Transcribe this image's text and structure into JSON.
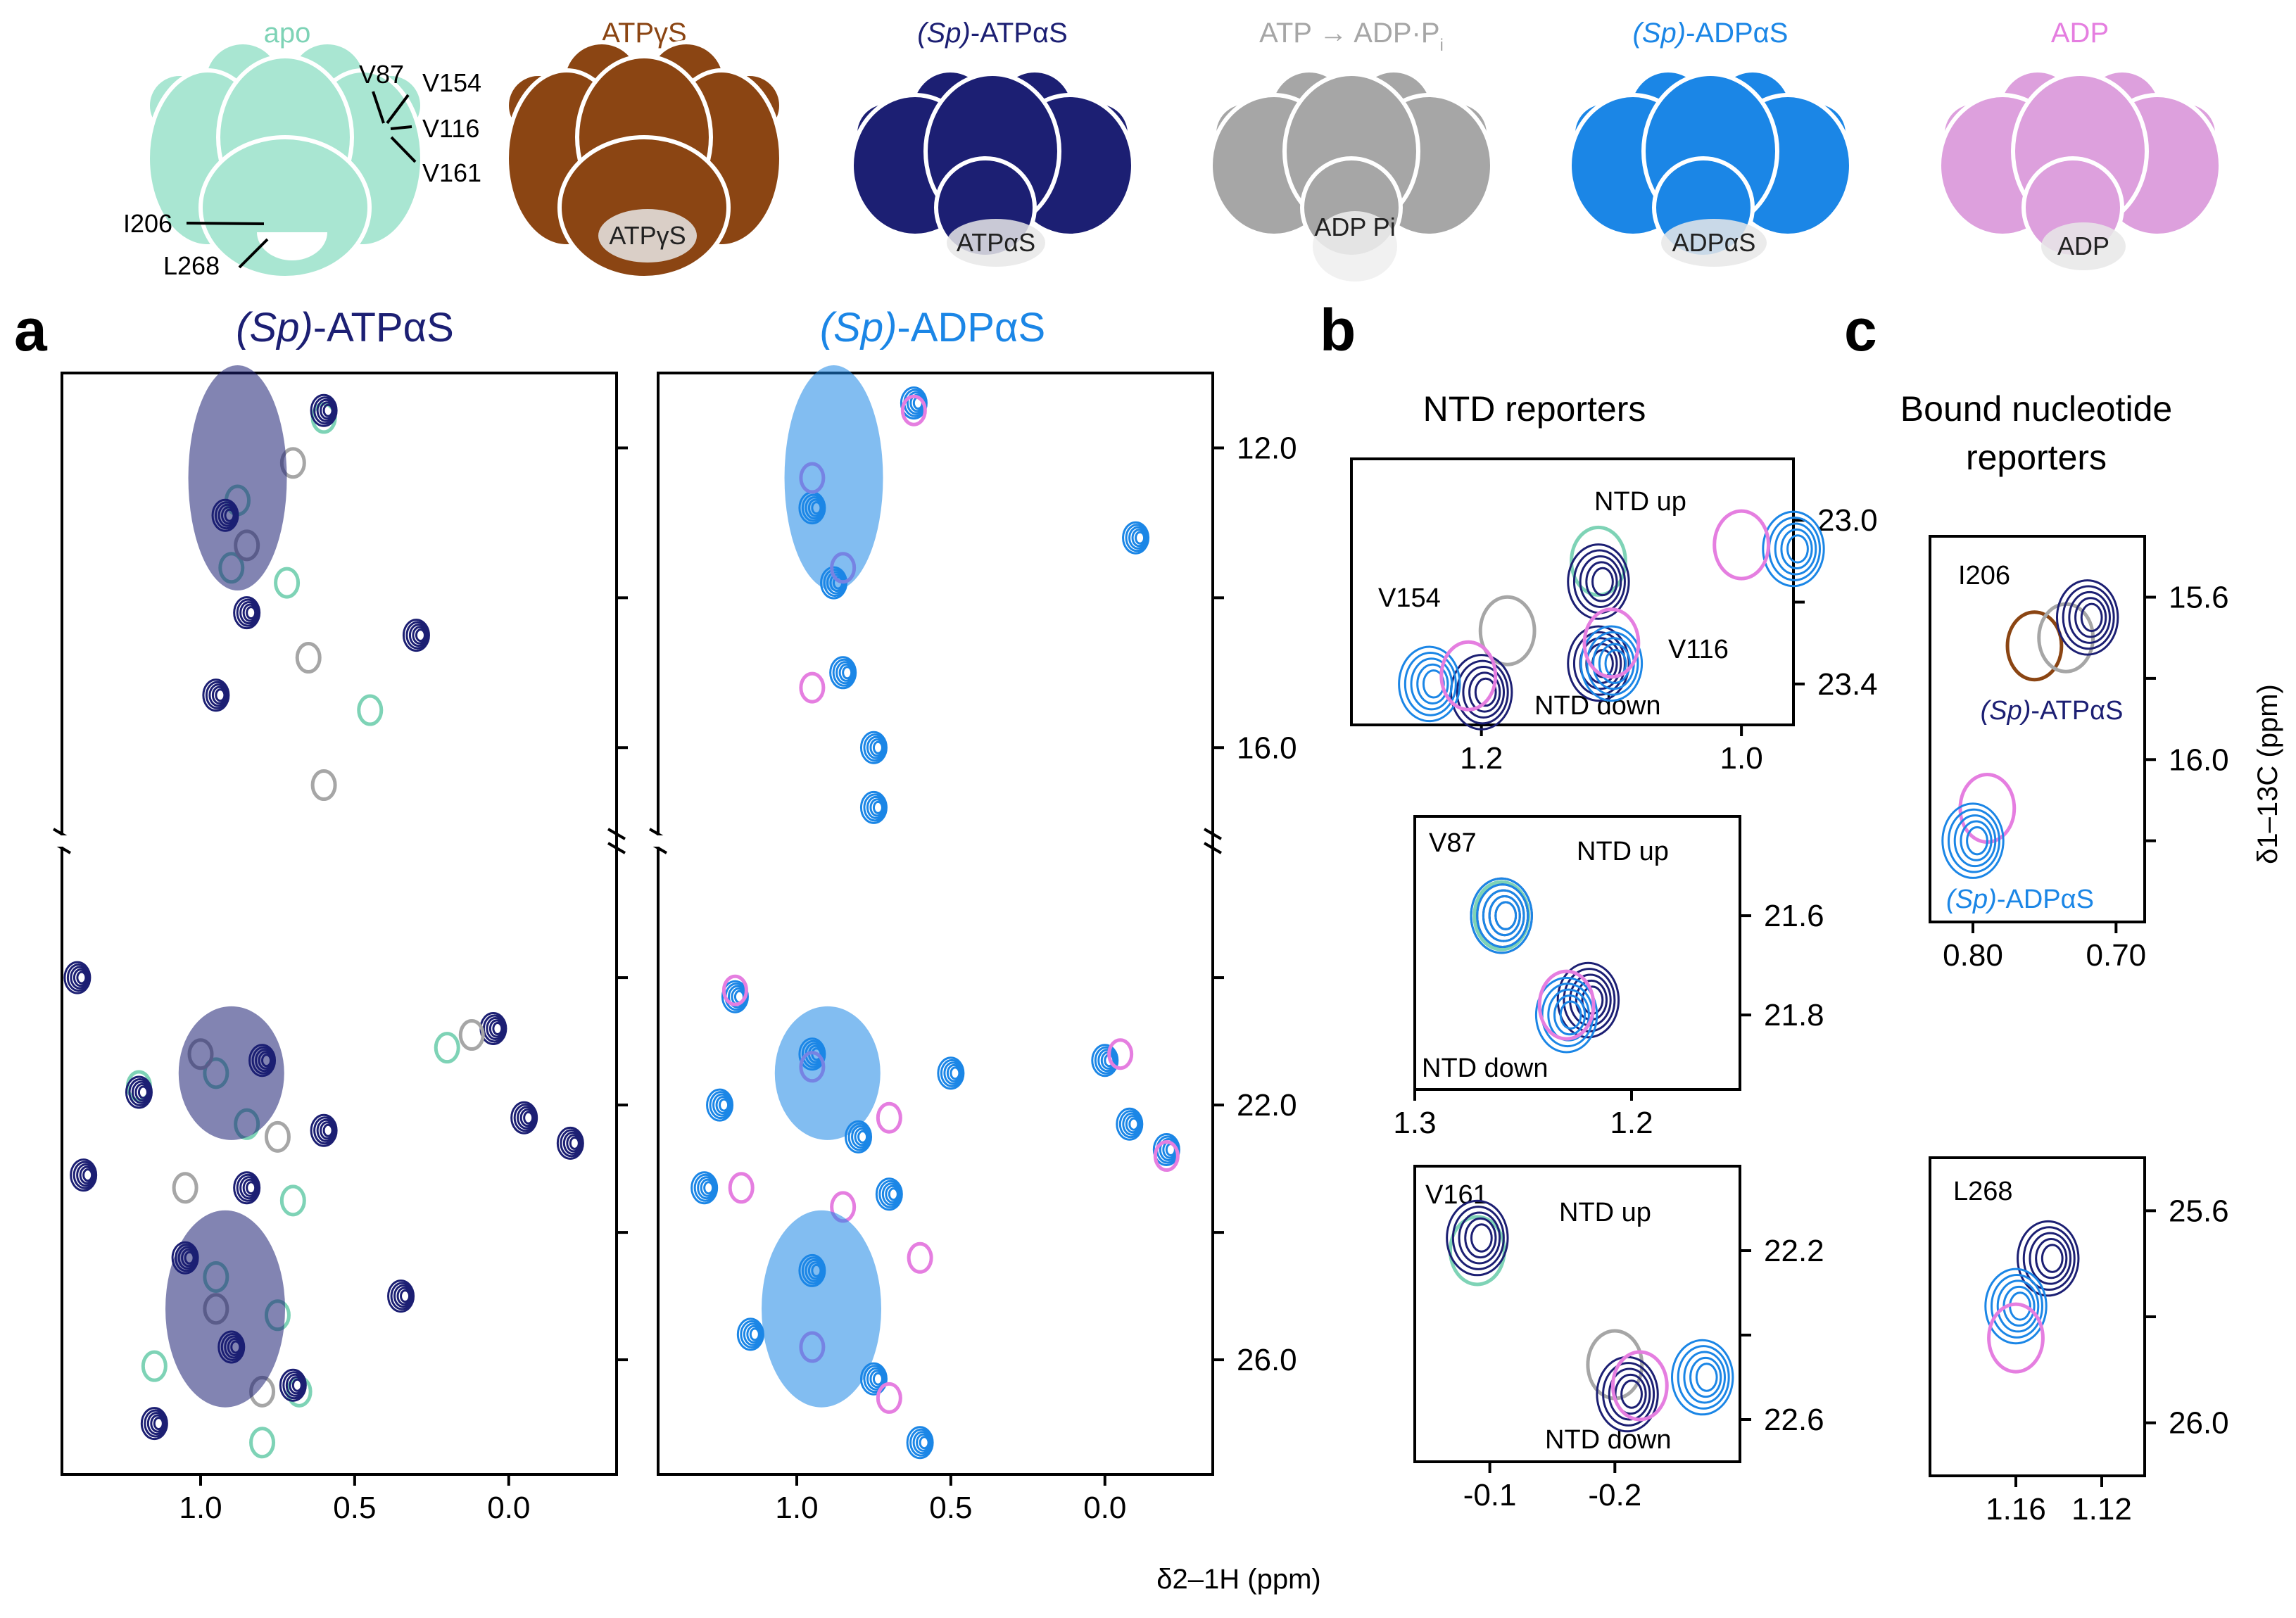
{
  "colors": {
    "apo": "#7ed3b6",
    "apo_fill": "#a9e6d2",
    "atpgs": "#8b4513",
    "atpas": "#1c1f73",
    "atp_adp": "#a6a6a6",
    "adpas": "#1b86e6",
    "adp": "#e57ee0",
    "adp_fill": "#dda0dd",
    "axis": "#000000"
  },
  "header": {
    "states": [
      {
        "label": "apo",
        "label_suffix": "",
        "color_key": "apo",
        "nucleotide": ""
      },
      {
        "label": "ATPγS",
        "label_suffix": "",
        "color_key": "atpgs",
        "nucleotide": "ATPγS"
      },
      {
        "label": "(Sp)",
        "label_suffix": "-ATPαS",
        "color_key": "atpas",
        "nucleotide": "ATPαS"
      },
      {
        "label": "ATP → ADP·P",
        "label_suffix": "i",
        "color_key": "atp_adp",
        "nucleotide": "ADP Pi"
      },
      {
        "label": "(Sp)",
        "label_suffix": "-ADPαS",
        "color_key": "adpas",
        "nucleotide": "ADPαS"
      },
      {
        "label": "ADP",
        "label_suffix": "",
        "color_key": "adp",
        "nucleotide": "ADP"
      }
    ],
    "residue_labels": [
      "V87",
      "V154",
      "V116",
      "V161",
      "I206",
      "L268"
    ]
  },
  "panel_letters": {
    "a": "a",
    "b": "b",
    "c": "c"
  },
  "chart_data": [
    {
      "id": "a-left",
      "type": "scatter",
      "title_italic": "(Sp)",
      "title": "-ATPαS",
      "xlim": [
        1.45,
        -0.35
      ],
      "xticks": [
        1.0,
        0.5,
        0.0
      ],
      "xtick_labels": [
        "1.0",
        "0.5",
        "0.0"
      ],
      "ylim_upper": [
        11.0,
        17.2
      ],
      "ylim_lower": [
        17.8,
        27.8
      ],
      "yticks": [
        12.0,
        14.0,
        16.0,
        20.0,
        22.0,
        24.0,
        26.0
      ],
      "series": [
        {
          "name": "apo",
          "color_key": "apo",
          "points": [
            [
              0.6,
              11.6
            ],
            [
              0.88,
              12.7
            ],
            [
              0.9,
              13.6
            ],
            [
              0.72,
              13.8
            ],
            [
              0.45,
              15.5
            ],
            [
              0.2,
              21.1
            ],
            [
              0.95,
              21.5
            ],
            [
              1.2,
              21.7
            ],
            [
              0.85,
              22.3
            ],
            [
              0.7,
              23.5
            ],
            [
              0.95,
              24.7
            ],
            [
              0.75,
              25.3
            ],
            [
              1.15,
              26.1
            ],
            [
              0.68,
              26.5
            ],
            [
              0.8,
              27.3
            ]
          ]
        },
        {
          "name": "(Sp)-ATPαS",
          "color_key": "atpas",
          "points": [
            [
              0.6,
              11.5
            ],
            [
              0.92,
              12.9
            ],
            [
              0.85,
              14.2
            ],
            [
              0.95,
              15.3
            ],
            [
              0.3,
              14.5
            ],
            [
              0.05,
              20.8
            ],
            [
              1.4,
              20.0
            ],
            [
              0.8,
              21.3
            ],
            [
              1.2,
              21.8
            ],
            [
              -0.05,
              22.2
            ],
            [
              -0.2,
              22.6
            ],
            [
              0.6,
              22.4
            ],
            [
              0.85,
              23.3
            ],
            [
              1.05,
              24.4
            ],
            [
              0.35,
              25.0
            ],
            [
              0.9,
              25.8
            ],
            [
              0.7,
              26.4
            ],
            [
              1.15,
              27.0
            ],
            [
              1.38,
              23.1
            ]
          ]
        },
        {
          "name": "ATP → ADP·Pi",
          "color_key": "atp_adp",
          "points": [
            [
              0.7,
              12.2
            ],
            [
              0.85,
              13.3
            ],
            [
              0.65,
              14.8
            ],
            [
              0.12,
              20.9
            ],
            [
              1.0,
              21.2
            ],
            [
              0.75,
              22.5
            ],
            [
              1.05,
              23.3
            ],
            [
              0.95,
              25.2
            ],
            [
              0.8,
              26.5
            ],
            [
              0.6,
              16.5
            ]
          ]
        }
      ],
      "ticks_right": false
    },
    {
      "id": "a-right",
      "type": "scatter",
      "title_italic": "(Sp)",
      "title": "-ADPαS",
      "xlim": [
        1.45,
        -0.35
      ],
      "xticks": [
        1.0,
        0.5,
        0.0
      ],
      "xtick_labels": [
        "1.0",
        "0.5",
        "0.0"
      ],
      "ylim_upper": [
        11.0,
        17.2
      ],
      "ylim_lower": [
        17.8,
        27.8
      ],
      "yticks": [
        12.0,
        14.0,
        16.0,
        20.0,
        22.0,
        24.0,
        26.0
      ],
      "ytick_labels": [
        "12.0",
        "",
        "16.0",
        "",
        "22.0",
        "",
        "26.0"
      ],
      "series": [
        {
          "name": "(Sp)-ADPαS",
          "color_key": "adpas",
          "points": [
            [
              0.62,
              11.4
            ],
            [
              0.95,
              12.8
            ],
            [
              0.88,
              13.8
            ],
            [
              0.85,
              15.0
            ],
            [
              -0.1,
              13.2
            ],
            [
              0.75,
              16.0
            ],
            [
              0.75,
              16.8
            ],
            [
              1.2,
              20.3
            ],
            [
              0.95,
              21.2
            ],
            [
              0.5,
              21.5
            ],
            [
              0.0,
              21.3
            ],
            [
              1.25,
              22.0
            ],
            [
              0.8,
              22.5
            ],
            [
              0.7,
              23.4
            ],
            [
              0.95,
              24.6
            ],
            [
              1.15,
              25.6
            ],
            [
              0.75,
              26.3
            ],
            [
              0.6,
              27.3
            ],
            [
              -0.08,
              22.3
            ],
            [
              -0.2,
              22.7
            ],
            [
              1.3,
              23.3
            ]
          ]
        },
        {
          "name": "ADP",
          "color_key": "adp",
          "points": [
            [
              0.62,
              11.5
            ],
            [
              0.95,
              12.4
            ],
            [
              0.85,
              13.6
            ],
            [
              0.95,
              15.2
            ],
            [
              1.2,
              20.2
            ],
            [
              0.95,
              21.4
            ],
            [
              0.7,
              22.2
            ],
            [
              1.18,
              23.3
            ],
            [
              0.85,
              23.6
            ],
            [
              0.6,
              24.4
            ],
            [
              0.95,
              25.8
            ],
            [
              0.7,
              26.6
            ],
            [
              -0.2,
              22.8
            ],
            [
              -0.05,
              21.2
            ]
          ]
        }
      ],
      "ticks_right": true
    },
    {
      "id": "b-ntd-1",
      "type": "scatter",
      "title": "NTD reporters",
      "xlim": [
        1.3,
        0.96
      ],
      "ylim": [
        23.5,
        22.85
      ],
      "xticks": [
        1.2,
        1.0
      ],
      "xtick_labels": [
        "1.2",
        "1.0"
      ],
      "yticks": [
        23.0,
        23.2,
        23.4
      ],
      "ytick_labels": [
        "23.0",
        "",
        "23.4"
      ],
      "annotations": [
        "V154",
        "NTD up",
        "V116",
        "NTD down"
      ],
      "series": [
        {
          "name": "apo",
          "color_key": "apo",
          "points": [
            [
              1.11,
              23.1
            ]
          ]
        },
        {
          "name": "ATP → ADP·Pi",
          "color_key": "atp_adp",
          "points": [
            [
              1.18,
              23.27
            ]
          ]
        },
        {
          "name": "(Sp)-ATPαS",
          "color_key": "atpas",
          "points": [
            [
              1.2,
              23.42
            ],
            [
              1.11,
              23.15
            ],
            [
              1.11,
              23.35
            ]
          ]
        },
        {
          "name": "(Sp)-ADPαS",
          "color_key": "adpas",
          "points": [
            [
              1.24,
              23.4
            ],
            [
              0.96,
              23.07
            ],
            [
              1.1,
              23.35
            ]
          ]
        },
        {
          "name": "ADP",
          "color_key": "adp",
          "points": [
            [
              1.21,
              23.38
            ],
            [
              1.0,
              23.06
            ],
            [
              1.1,
              23.3
            ]
          ]
        }
      ]
    },
    {
      "id": "b-v87",
      "type": "scatter",
      "xlim": [
        1.3,
        1.15
      ],
      "ylim": [
        21.95,
        21.4
      ],
      "xticks": [
        1.3,
        1.2
      ],
      "xtick_labels": [
        "1.3",
        "1.2"
      ],
      "yticks": [
        21.6,
        21.8
      ],
      "ytick_labels": [
        "21.6",
        "21.8"
      ],
      "annotations": [
        "V87",
        "NTD up",
        "NTD down"
      ],
      "series": [
        {
          "name": "apo",
          "color_key": "apo",
          "points": [
            [
              1.26,
              21.6
            ]
          ]
        },
        {
          "name": "(Sp)-ATPαS",
          "color_key": "atpas",
          "points": [
            [
              1.26,
              21.6
            ],
            [
              1.22,
              21.77
            ]
          ]
        },
        {
          "name": "(Sp)-ADPαS",
          "color_key": "adpas",
          "points": [
            [
              1.26,
              21.6
            ],
            [
              1.23,
              21.8
            ]
          ]
        },
        {
          "name": "ADP",
          "color_key": "adp",
          "points": [
            [
              1.23,
              21.78
            ]
          ]
        }
      ]
    },
    {
      "id": "b-v161",
      "type": "scatter",
      "xlim": [
        -0.04,
        -0.3
      ],
      "ylim": [
        22.7,
        22.0
      ],
      "xticks": [
        -0.1,
        -0.2
      ],
      "xtick_labels": [
        "-0.1",
        "-0.2"
      ],
      "yticks": [
        22.2,
        22.4,
        22.6
      ],
      "ytick_labels": [
        "22.2",
        "",
        "22.6"
      ],
      "annotations": [
        "V161",
        "NTD up",
        "NTD down"
      ],
      "series": [
        {
          "name": "apo",
          "color_key": "apo",
          "points": [
            [
              -0.09,
              22.2
            ]
          ]
        },
        {
          "name": "ATP → ADP·Pi",
          "color_key": "atp_adp",
          "points": [
            [
              -0.2,
              22.47
            ]
          ]
        },
        {
          "name": "(Sp)-ATPαS",
          "color_key": "atpas",
          "points": [
            [
              -0.09,
              22.17
            ],
            [
              -0.21,
              22.54
            ]
          ]
        },
        {
          "name": "(Sp)-ADPαS",
          "color_key": "adpas",
          "points": [
            [
              -0.27,
              22.5
            ]
          ]
        },
        {
          "name": "ADP",
          "color_key": "adp",
          "points": [
            [
              -0.22,
              22.52
            ]
          ]
        }
      ]
    },
    {
      "id": "c-i206",
      "type": "scatter",
      "title": "Bound nucleotide",
      "title_line2": "reporters",
      "xlim": [
        0.83,
        0.68
      ],
      "ylim": [
        16.4,
        15.45
      ],
      "xticks": [
        0.8,
        0.7
      ],
      "xtick_labels": [
        "0.80",
        "0.70"
      ],
      "yticks": [
        15.6,
        15.8,
        16.0,
        16.2
      ],
      "ytick_labels": [
        "15.6",
        "",
        "16.0",
        ""
      ],
      "annotations": [
        "I206",
        "(Sp)-ATPαS",
        "(Sp)-ADPαS"
      ],
      "ylabel": "δ1–13C (ppm)",
      "series": [
        {
          "name": "ATPγS",
          "color_key": "atpgs",
          "points": [
            [
              0.757,
              15.72
            ]
          ]
        },
        {
          "name": "ATP → ADP·Pi",
          "color_key": "atp_adp",
          "points": [
            [
              0.735,
              15.7
            ]
          ]
        },
        {
          "name": "(Sp)-ATPαS",
          "color_key": "atpas",
          "points": [
            [
              0.72,
              15.65
            ]
          ]
        },
        {
          "name": "ADP",
          "color_key": "adp",
          "points": [
            [
              0.79,
              16.12
            ]
          ]
        },
        {
          "name": "(Sp)-ADPαS",
          "color_key": "adpas",
          "points": [
            [
              0.8,
              16.2
            ]
          ]
        }
      ]
    },
    {
      "id": "c-l268",
      "type": "scatter",
      "xlim": [
        1.2,
        1.1
      ],
      "ylim": [
        26.1,
        25.5
      ],
      "xticks": [
        1.16,
        1.12
      ],
      "xtick_labels": [
        "1.16",
        "1.12"
      ],
      "yticks": [
        25.6,
        25.8,
        26.0
      ],
      "ytick_labels": [
        "25.6",
        "",
        "26.0"
      ],
      "annotations": [
        "L268"
      ],
      "series": [
        {
          "name": "(Sp)-ATPαS",
          "color_key": "atpas",
          "points": [
            [
              1.145,
              25.69
            ]
          ]
        },
        {
          "name": "(Sp)-ADPαS",
          "color_key": "adpas",
          "points": [
            [
              1.16,
              25.78
            ]
          ]
        },
        {
          "name": "ADP",
          "color_key": "adp",
          "points": [
            [
              1.16,
              25.84
            ]
          ]
        }
      ]
    }
  ],
  "shared_xlabel": "δ2–1H (ppm)"
}
